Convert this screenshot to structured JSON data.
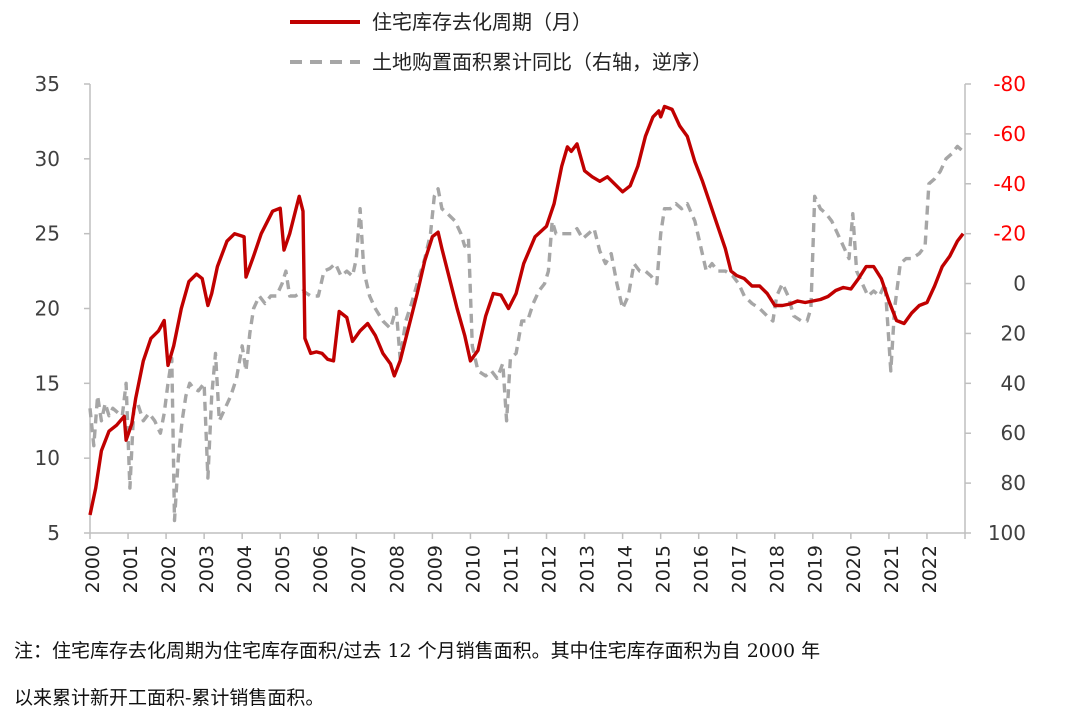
{
  "colors": {
    "series1": "#c00000",
    "series2": "#a6a6a6",
    "right_axis_text": "#ff0000",
    "axis": "#bfbfbf"
  },
  "chart_data": {
    "type": "line",
    "title": "",
    "xlabel": "",
    "ylabel": "",
    "x_ticks": [
      "2000",
      "2001",
      "2002",
      "2003",
      "2004",
      "2005",
      "2006",
      "2007",
      "2008",
      "2009",
      "2010",
      "2011",
      "2012",
      "2013",
      "2014",
      "2015",
      "2016",
      "2017",
      "2018",
      "2019",
      "2020",
      "2021",
      "2022"
    ],
    "x_range": [
      2000,
      2023
    ],
    "y_left": {
      "range": [
        5,
        35
      ],
      "ticks": [
        "5",
        "10",
        "15",
        "20",
        "25",
        "30",
        "35"
      ],
      "tick_values": [
        5,
        10,
        15,
        20,
        25,
        30,
        35
      ]
    },
    "y_right": {
      "range": [
        100,
        -80
      ],
      "reversed": true,
      "ticks": [
        "100",
        "80",
        "60",
        "40",
        "20",
        "0",
        "-20",
        "-40",
        "-60",
        "-80"
      ],
      "tick_values": [
        100,
        80,
        60,
        40,
        20,
        0,
        -20,
        -40,
        -60,
        -80
      ]
    },
    "legend_position": "top",
    "grid": false,
    "series": [
      {
        "name": "住宅库存去化周期（月）",
        "axis": "left",
        "style": "solid",
        "points": [
          [
            2000.0,
            6.2
          ],
          [
            2000.15,
            8.0
          ],
          [
            2000.3,
            10.5
          ],
          [
            2000.5,
            11.8
          ],
          [
            2000.7,
            12.2
          ],
          [
            2000.9,
            12.8
          ],
          [
            2000.95,
            11.2
          ],
          [
            2001.1,
            12.3
          ],
          [
            2001.2,
            14.0
          ],
          [
            2001.4,
            16.5
          ],
          [
            2001.6,
            18.0
          ],
          [
            2001.8,
            18.5
          ],
          [
            2001.95,
            19.2
          ],
          [
            2002.05,
            16.2
          ],
          [
            2002.2,
            17.5
          ],
          [
            2002.4,
            20.0
          ],
          [
            2002.6,
            21.8
          ],
          [
            2002.8,
            22.3
          ],
          [
            2002.95,
            22.0
          ],
          [
            2003.1,
            20.2
          ],
          [
            2003.2,
            21.0
          ],
          [
            2003.35,
            22.8
          ],
          [
            2003.6,
            24.5
          ],
          [
            2003.8,
            25.0
          ],
          [
            2004.05,
            24.8
          ],
          [
            2004.1,
            22.1
          ],
          [
            2004.3,
            23.5
          ],
          [
            2004.5,
            25.0
          ],
          [
            2004.8,
            26.5
          ],
          [
            2005.0,
            26.7
          ],
          [
            2005.1,
            23.9
          ],
          [
            2005.25,
            25.0
          ],
          [
            2005.4,
            26.5
          ],
          [
            2005.5,
            27.5
          ],
          [
            2005.6,
            26.5
          ],
          [
            2005.65,
            18.0
          ],
          [
            2005.8,
            17.0
          ],
          [
            2005.95,
            17.1
          ],
          [
            2006.1,
            17.0
          ],
          [
            2006.25,
            16.6
          ],
          [
            2006.4,
            16.5
          ],
          [
            2006.55,
            19.8
          ],
          [
            2006.75,
            19.4
          ],
          [
            2006.9,
            17.8
          ],
          [
            2007.1,
            18.5
          ],
          [
            2007.3,
            19.0
          ],
          [
            2007.5,
            18.2
          ],
          [
            2007.7,
            17.0
          ],
          [
            2007.9,
            16.3
          ],
          [
            2008.0,
            15.5
          ],
          [
            2008.15,
            16.5
          ],
          [
            2008.4,
            19.0
          ],
          [
            2008.6,
            21.0
          ],
          [
            2008.8,
            23.2
          ],
          [
            2009.0,
            24.8
          ],
          [
            2009.15,
            25.1
          ],
          [
            2009.25,
            24.0
          ],
          [
            2009.4,
            22.5
          ],
          [
            2009.65,
            20.0
          ],
          [
            2009.85,
            18.2
          ],
          [
            2010.0,
            16.5
          ],
          [
            2010.2,
            17.2
          ],
          [
            2010.4,
            19.5
          ],
          [
            2010.6,
            21.0
          ],
          [
            2010.8,
            20.9
          ],
          [
            2011.0,
            20.0
          ],
          [
            2011.2,
            21.0
          ],
          [
            2011.4,
            23.0
          ],
          [
            2011.7,
            24.8
          ],
          [
            2012.0,
            25.5
          ],
          [
            2012.2,
            27.0
          ],
          [
            2012.4,
            29.5
          ],
          [
            2012.55,
            30.8
          ],
          [
            2012.65,
            30.5
          ],
          [
            2012.8,
            31.0
          ],
          [
            2013.0,
            29.2
          ],
          [
            2013.2,
            28.8
          ],
          [
            2013.4,
            28.5
          ],
          [
            2013.6,
            28.8
          ],
          [
            2013.8,
            28.3
          ],
          [
            2014.0,
            27.8
          ],
          [
            2014.2,
            28.2
          ],
          [
            2014.4,
            29.5
          ],
          [
            2014.6,
            31.5
          ],
          [
            2014.8,
            32.8
          ],
          [
            2014.95,
            33.2
          ],
          [
            2015.0,
            32.8
          ],
          [
            2015.1,
            33.5
          ],
          [
            2015.3,
            33.3
          ],
          [
            2015.5,
            32.2
          ],
          [
            2015.7,
            31.5
          ],
          [
            2015.9,
            29.8
          ],
          [
            2016.1,
            28.5
          ],
          [
            2016.3,
            27.0
          ],
          [
            2016.5,
            25.5
          ],
          [
            2016.7,
            24.0
          ],
          [
            2016.85,
            22.5
          ],
          [
            2017.0,
            22.2
          ],
          [
            2017.2,
            22.0
          ],
          [
            2017.4,
            21.5
          ],
          [
            2017.6,
            21.5
          ],
          [
            2017.8,
            21.0
          ],
          [
            2018.0,
            20.2
          ],
          [
            2018.2,
            20.2
          ],
          [
            2018.4,
            20.3
          ],
          [
            2018.6,
            20.5
          ],
          [
            2018.8,
            20.4
          ],
          [
            2019.0,
            20.5
          ],
          [
            2019.2,
            20.6
          ],
          [
            2019.4,
            20.8
          ],
          [
            2019.6,
            21.2
          ],
          [
            2019.8,
            21.4
          ],
          [
            2020.0,
            21.3
          ],
          [
            2020.2,
            22.0
          ],
          [
            2020.4,
            22.8
          ],
          [
            2020.6,
            22.8
          ],
          [
            2020.8,
            22.0
          ],
          [
            2021.0,
            20.5
          ],
          [
            2021.2,
            19.2
          ],
          [
            2021.4,
            19.0
          ],
          [
            2021.6,
            19.7
          ],
          [
            2021.8,
            20.2
          ],
          [
            2022.0,
            20.4
          ],
          [
            2022.2,
            21.5
          ],
          [
            2022.4,
            22.8
          ],
          [
            2022.6,
            23.5
          ],
          [
            2022.8,
            24.5
          ],
          [
            2022.95,
            25.0
          ]
        ]
      },
      {
        "name": "土地购置面积累计同比（右轴，逆序）",
        "axis": "right",
        "style": "dashed",
        "points": [
          [
            2000.0,
            50
          ],
          [
            2000.1,
            65
          ],
          [
            2000.2,
            45
          ],
          [
            2000.3,
            55
          ],
          [
            2000.4,
            48
          ],
          [
            2000.5,
            53
          ],
          [
            2000.6,
            50
          ],
          [
            2000.75,
            52
          ],
          [
            2000.85,
            53
          ],
          [
            2000.95,
            40
          ],
          [
            2001.05,
            82
          ],
          [
            2001.15,
            50
          ],
          [
            2001.25,
            48
          ],
          [
            2001.4,
            55
          ],
          [
            2001.55,
            52
          ],
          [
            2001.7,
            55
          ],
          [
            2001.85,
            60
          ],
          [
            2001.95,
            52
          ],
          [
            2002.05,
            40
          ],
          [
            2002.15,
            30
          ],
          [
            2002.22,
            95
          ],
          [
            2002.32,
            70
          ],
          [
            2002.42,
            55
          ],
          [
            2002.52,
            45
          ],
          [
            2002.62,
            40
          ],
          [
            2002.72,
            42
          ],
          [
            2002.85,
            43
          ],
          [
            2003.0,
            40
          ],
          [
            2003.1,
            78
          ],
          [
            2003.2,
            45
          ],
          [
            2003.3,
            28
          ],
          [
            2003.4,
            55
          ],
          [
            2003.55,
            50
          ],
          [
            2003.7,
            45
          ],
          [
            2003.85,
            38
          ],
          [
            2004.0,
            25
          ],
          [
            2004.1,
            35
          ],
          [
            2004.2,
            20
          ],
          [
            2004.3,
            10
          ],
          [
            2004.45,
            5
          ],
          [
            2004.6,
            8
          ],
          [
            2004.75,
            5
          ],
          [
            2004.9,
            5
          ],
          [
            2005.05,
            0
          ],
          [
            2005.15,
            -5
          ],
          [
            2005.25,
            5
          ],
          [
            2005.4,
            5
          ],
          [
            2005.6,
            3
          ],
          [
            2005.8,
            5
          ],
          [
            2006.0,
            5
          ],
          [
            2006.15,
            -5
          ],
          [
            2006.3,
            -6
          ],
          [
            2006.45,
            -8
          ],
          [
            2006.6,
            -3
          ],
          [
            2006.75,
            -5
          ],
          [
            2006.9,
            -3
          ],
          [
            2007.0,
            -10
          ],
          [
            2007.1,
            -30
          ],
          [
            2007.2,
            -5
          ],
          [
            2007.35,
            5
          ],
          [
            2007.5,
            10
          ],
          [
            2007.7,
            15
          ],
          [
            2007.9,
            18
          ],
          [
            2008.05,
            10
          ],
          [
            2008.15,
            30
          ],
          [
            2008.3,
            15
          ],
          [
            2008.45,
            8
          ],
          [
            2008.6,
            0
          ],
          [
            2008.8,
            -10
          ],
          [
            2008.95,
            -20
          ],
          [
            2009.05,
            -35
          ],
          [
            2009.15,
            -38
          ],
          [
            2009.25,
            -30
          ],
          [
            2009.4,
            -28
          ],
          [
            2009.6,
            -25
          ],
          [
            2009.75,
            -20
          ],
          [
            2009.85,
            -15
          ],
          [
            2009.95,
            -18
          ],
          [
            2010.05,
            25
          ],
          [
            2010.2,
            35
          ],
          [
            2010.4,
            37
          ],
          [
            2010.55,
            35
          ],
          [
            2010.7,
            38
          ],
          [
            2010.85,
            32
          ],
          [
            2010.95,
            55
          ],
          [
            2011.05,
            30
          ],
          [
            2011.2,
            28
          ],
          [
            2011.35,
            15
          ],
          [
            2011.5,
            15
          ],
          [
            2011.65,
            8
          ],
          [
            2011.8,
            3
          ],
          [
            2011.95,
            0
          ],
          [
            2012.05,
            -5
          ],
          [
            2012.15,
            -25
          ],
          [
            2012.25,
            -20
          ],
          [
            2012.35,
            -20
          ],
          [
            2012.5,
            -20
          ],
          [
            2012.65,
            -20
          ],
          [
            2012.8,
            -22
          ],
          [
            2012.95,
            -18
          ],
          [
            2013.1,
            -20
          ],
          [
            2013.25,
            -22
          ],
          [
            2013.4,
            -13
          ],
          [
            2013.55,
            -8
          ],
          [
            2013.7,
            -12
          ],
          [
            2013.85,
            0
          ],
          [
            2014.0,
            10
          ],
          [
            2014.15,
            5
          ],
          [
            2014.3,
            -8
          ],
          [
            2014.45,
            -5
          ],
          [
            2014.6,
            -5
          ],
          [
            2014.75,
            -3
          ],
          [
            2014.9,
            0
          ],
          [
            2015.0,
            -20
          ],
          [
            2015.1,
            -30
          ],
          [
            2015.25,
            -30
          ],
          [
            2015.4,
            -32
          ],
          [
            2015.55,
            -30
          ],
          [
            2015.7,
            -32
          ],
          [
            2015.9,
            -25
          ],
          [
            2016.05,
            -15
          ],
          [
            2016.2,
            -5
          ],
          [
            2016.35,
            -8
          ],
          [
            2016.5,
            -5
          ],
          [
            2016.7,
            -5
          ],
          [
            2016.9,
            -3
          ],
          [
            2017.05,
            0
          ],
          [
            2017.2,
            5
          ],
          [
            2017.4,
            8
          ],
          [
            2017.6,
            10
          ],
          [
            2017.8,
            13
          ],
          [
            2017.95,
            15
          ],
          [
            2018.05,
            5
          ],
          [
            2018.2,
            0
          ],
          [
            2018.35,
            5
          ],
          [
            2018.5,
            13
          ],
          [
            2018.7,
            15
          ],
          [
            2018.85,
            15
          ],
          [
            2018.95,
            10
          ],
          [
            2019.05,
            -35
          ],
          [
            2019.2,
            -30
          ],
          [
            2019.35,
            -28
          ],
          [
            2019.5,
            -25
          ],
          [
            2019.65,
            -20
          ],
          [
            2019.8,
            -15
          ],
          [
            2019.95,
            -10
          ],
          [
            2020.05,
            -28
          ],
          [
            2020.15,
            -5
          ],
          [
            2020.3,
            0
          ],
          [
            2020.45,
            5
          ],
          [
            2020.6,
            3
          ],
          [
            2020.75,
            5
          ],
          [
            2020.9,
            0
          ],
          [
            2021.05,
            35
          ],
          [
            2021.15,
            10
          ],
          [
            2021.3,
            -8
          ],
          [
            2021.45,
            -10
          ],
          [
            2021.6,
            -10
          ],
          [
            2021.8,
            -12
          ],
          [
            2021.95,
            -15
          ],
          [
            2022.05,
            -40
          ],
          [
            2022.2,
            -42
          ],
          [
            2022.35,
            -45
          ],
          [
            2022.5,
            -50
          ],
          [
            2022.65,
            -52
          ],
          [
            2022.8,
            -55
          ],
          [
            2022.95,
            -53
          ]
        ]
      }
    ]
  },
  "notes": {
    "line1": "注：住宅库存去化周期为住宅库存面积/过去 12 个月销售面积。其中住宅库存面积为自 2000 年",
    "line2": "以来累计新开工面积-累计销售面积。"
  }
}
